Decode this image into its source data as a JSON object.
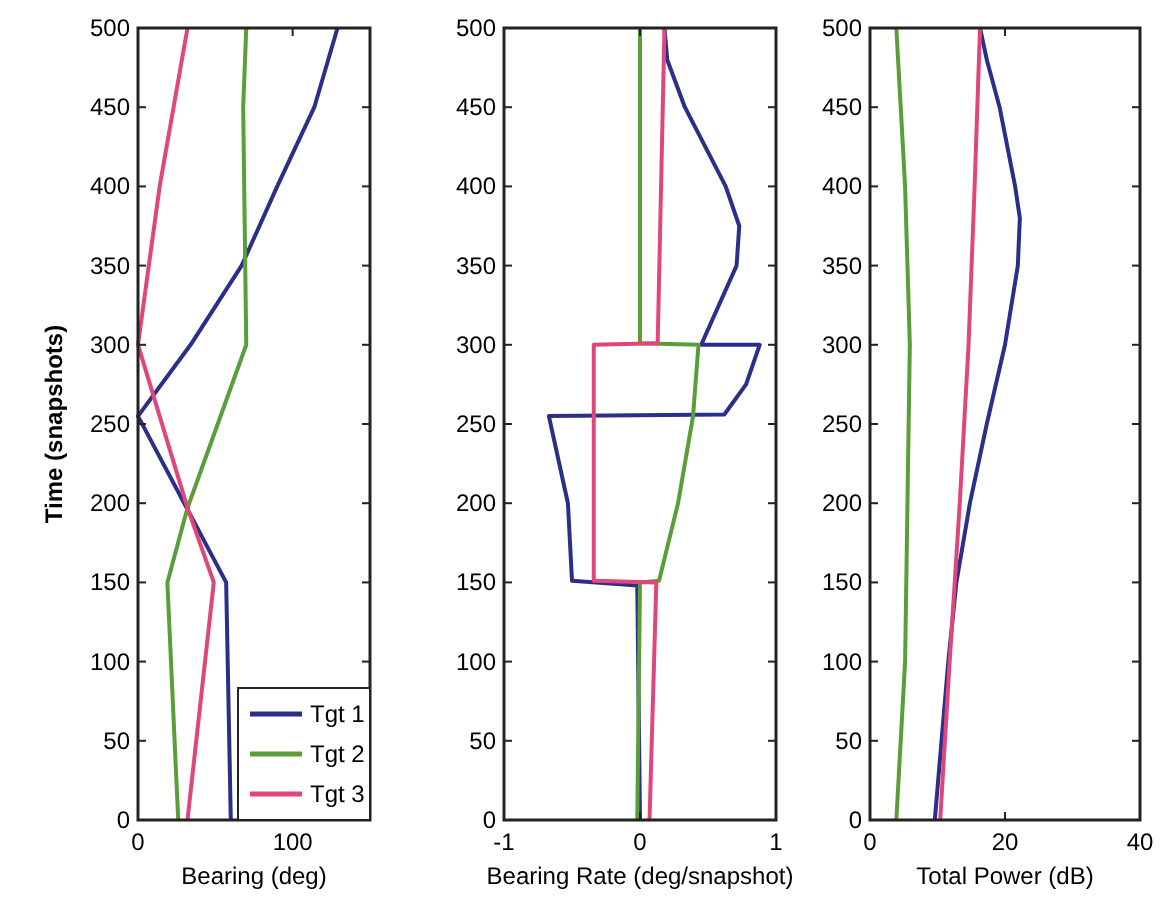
{
  "chart_data": [
    {
      "type": "line",
      "xlabel": "Bearing (deg)",
      "ylabel": "Time (snapshots)",
      "xlim": [
        0,
        150
      ],
      "xticks": [
        0,
        100
      ],
      "ylim": [
        0,
        500
      ],
      "yticks": [
        0,
        50,
        100,
        150,
        200,
        250,
        300,
        350,
        400,
        450,
        500
      ],
      "legend": "bottom right",
      "grid": false,
      "series": [
        {
          "name": "Tgt 1",
          "color": "#2b2f8a",
          "x": [
            60,
            57,
            0,
            34,
            67,
            90,
            114,
            129
          ],
          "values": [
            0,
            150,
            255,
            300,
            350,
            400,
            450,
            500
          ]
        },
        {
          "name": "Tgt 2",
          "color": "#5a9e3a",
          "x": [
            26,
            19,
            32,
            70,
            68,
            70
          ],
          "values": [
            0,
            150,
            197,
            300,
            450,
            500
          ]
        },
        {
          "name": "Tgt 3",
          "color": "#e0457b",
          "x": [
            32,
            49,
            32,
            0,
            14,
            32
          ],
          "values": [
            0,
            150,
            197,
            300,
            400,
            500
          ]
        }
      ]
    },
    {
      "type": "line",
      "xlabel": "Bearing Rate (deg/snapshot)",
      "xlim": [
        -1,
        1
      ],
      "xticks": [
        -1,
        0,
        1
      ],
      "ylim": [
        0,
        500
      ],
      "yticks": [
        0,
        50,
        100,
        150,
        200,
        250,
        300,
        350,
        400,
        450,
        500
      ],
      "grid": false,
      "series": [
        {
          "color": "#2b2f8a",
          "x": [
            0,
            -0.02,
            -0.5,
            -0.53,
            -0.67,
            0.62,
            0.78,
            0.88,
            0.45,
            0.71,
            0.73,
            0.63,
            0.33,
            0.2,
            0.18
          ],
          "values": [
            0,
            148,
            151,
            200,
            255,
            256,
            275,
            300,
            300,
            350,
            375,
            400,
            450,
            480,
            500
          ]
        },
        {
          "color": "#5a9e3a",
          "x": [
            -0.02,
            0,
            0.14,
            0.28,
            0.39,
            0.43,
            0,
            0
          ],
          "values": [
            0,
            150,
            151,
            200,
            255,
            300,
            301,
            500
          ]
        },
        {
          "color": "#e0457b",
          "x": [
            0.07,
            0.12,
            -0.34,
            -0.34,
            0.13,
            0.18
          ],
          "values": [
            0,
            150,
            151,
            300,
            301,
            500
          ]
        }
      ]
    },
    {
      "type": "line",
      "xlabel": "Total Power (dB)",
      "xlim": [
        0,
        40
      ],
      "xticks": [
        0,
        20,
        40
      ],
      "ylim": [
        0,
        500
      ],
      "yticks": [
        0,
        50,
        100,
        150,
        200,
        250,
        300,
        350,
        400,
        450,
        500
      ],
      "grid": false,
      "series": [
        {
          "color": "#2b2f8a",
          "x": [
            9.6,
            11.6,
            12.8,
            14.8,
            17.3,
            20,
            21.9,
            22.2,
            21.5,
            19.2,
            17.3,
            16.3
          ],
          "values": [
            0,
            100,
            150,
            200,
            250,
            300,
            350,
            380,
            400,
            450,
            480,
            500
          ]
        },
        {
          "color": "#5a9e3a",
          "x": [
            3.9,
            5.2,
            5.9,
            5.2,
            3.9
          ],
          "values": [
            0,
            100,
            300,
            400,
            500
          ]
        },
        {
          "color": "#e0457b",
          "x": [
            10.4,
            11.8,
            13.3,
            14.6,
            15.5,
            16.3
          ],
          "values": [
            0,
            100,
            200,
            300,
            400,
            500
          ]
        }
      ]
    }
  ]
}
